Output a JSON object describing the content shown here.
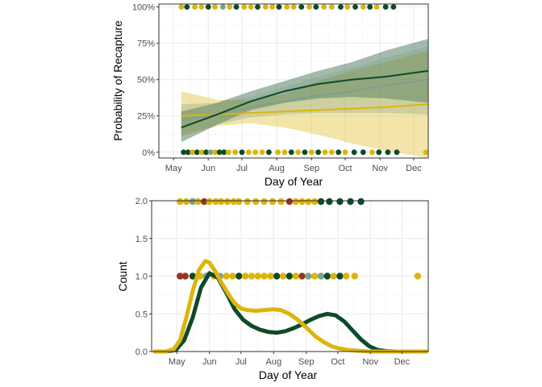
{
  "colors": {
    "dark_green": "#0d4a28",
    "yellow": "#dcb50c",
    "sage": "#7ca18a",
    "red": "#9b3322",
    "panel_border": "#333333",
    "grid": "#ebebeb"
  },
  "chart_data": [
    {
      "type": "line",
      "xlabel": "Day of Year",
      "ylabel": "Probability of Recapture",
      "x_ticks": [
        "May",
        "Jun",
        "Jul",
        "Aug",
        "Sep",
        "Oct",
        "Nov",
        "Dec"
      ],
      "x_tick_days": [
        121,
        152,
        182,
        213,
        244,
        274,
        305,
        335
      ],
      "xlim": [
        108,
        348
      ],
      "y_ticks": [
        "0%",
        "25%",
        "50%",
        "75%",
        "100%"
      ],
      "ylim": [
        -0.04,
        1.02
      ],
      "grid": true,
      "series": [
        {
          "color": "#0d4a28",
          "x": [
            128,
            160,
            190,
            220,
            250,
            280,
            310,
            348
          ],
          "y": [
            0.17,
            0.26,
            0.35,
            0.42,
            0.47,
            0.5,
            0.52,
            0.56
          ],
          "ci_lower": [
            0.07,
            0.19,
            0.29,
            0.34,
            0.37,
            0.38,
            0.37,
            0.34
          ],
          "ci_upper": [
            0.28,
            0.34,
            0.42,
            0.49,
            0.56,
            0.62,
            0.7,
            0.78
          ]
        },
        {
          "color": "#7ca18a",
          "x": [
            128,
            160,
            190,
            220,
            250,
            280,
            310,
            348
          ],
          "y": [
            0.22,
            0.26,
            0.31,
            0.35,
            0.39,
            0.42,
            0.46,
            0.5
          ],
          "ci_lower": [
            0.13,
            0.19,
            0.24,
            0.26,
            0.27,
            0.27,
            0.27,
            0.26
          ],
          "ci_upper": [
            0.33,
            0.34,
            0.38,
            0.45,
            0.52,
            0.58,
            0.65,
            0.73
          ]
        },
        {
          "color": "#dcb50c",
          "x": [
            128,
            160,
            190,
            220,
            250,
            280,
            310,
            348
          ],
          "y": [
            0.25,
            0.26,
            0.27,
            0.28,
            0.29,
            0.3,
            0.31,
            0.33
          ],
          "ci_lower": [
            0.11,
            0.18,
            0.2,
            0.17,
            0.12,
            0.06,
            0.01,
            -0.05
          ],
          "ci_upper": [
            0.42,
            0.36,
            0.36,
            0.4,
            0.49,
            0.56,
            0.62,
            0.7
          ]
        }
      ],
      "observations": {
        "y1": {
          "x": [
            128,
            133,
            140,
            146,
            152,
            158,
            165,
            171,
            177,
            184,
            190,
            196,
            203,
            209,
            215,
            222,
            228,
            235,
            242,
            248,
            255,
            262,
            270,
            276,
            283,
            290,
            296,
            302,
            310,
            317
          ],
          "colors": [
            "#dcb50c",
            "#0d4a28",
            "#dcb50c",
            "#dcb50c",
            "#0d4a28",
            "#dcb50c",
            "#7ca18a",
            "#dcb50c",
            "#0d4a28",
            "#dcb50c",
            "#dcb50c",
            "#0d4a28",
            "#dcb50c",
            "#dcb50c",
            "#0d4a28",
            "#dcb50c",
            "#dcb50c",
            "#0d4a28",
            "#dcb50c",
            "#0d4a28",
            "#dcb50c",
            "#dcb50c",
            "#0d4a28",
            "#dcb50c",
            "#0d4a28",
            "#dcb50c",
            "#0d4a28",
            "#dcb50c",
            "#0d4a28",
            "#0d4a28"
          ]
        },
        "y0": {
          "x": [
            130,
            134,
            138,
            142,
            146,
            150,
            154,
            158,
            162,
            166,
            170,
            176,
            182,
            188,
            194,
            200,
            206,
            214,
            220,
            226,
            232,
            238,
            244,
            250,
            256,
            262,
            268,
            274,
            282,
            290,
            298,
            304,
            312,
            320,
            346
          ],
          "colors": [
            "#0d4a28",
            "#0d4a28",
            "#dcb50c",
            "#0d4a28",
            "#dcb50c",
            "#0d4a28",
            "#7ca18a",
            "#dcb50c",
            "#0d4a28",
            "#0d4a28",
            "#dcb50c",
            "#dcb50c",
            "#0d4a28",
            "#dcb50c",
            "#dcb50c",
            "#dcb50c",
            "#0d4a28",
            "#dcb50c",
            "#dcb50c",
            "#0d4a28",
            "#dcb50c",
            "#0d4a28",
            "#dcb50c",
            "#0d4a28",
            "#dcb50c",
            "#dcb50c",
            "#0d4a28",
            "#dcb50c",
            "#0d4a28",
            "#0d4a28",
            "#dcb50c",
            "#0d4a28",
            "#0d4a28",
            "#0d4a28",
            "#dcb50c"
          ]
        }
      }
    },
    {
      "type": "line",
      "xlabel": "Day of Year",
      "ylabel": "Count",
      "x_ticks": [
        "May",
        "Jun",
        "Jul",
        "Aug",
        "Sep",
        "Oct",
        "Nov",
        "Dec"
      ],
      "x_tick_days": [
        121,
        152,
        182,
        213,
        244,
        274,
        305,
        335
      ],
      "xlim": [
        97,
        360
      ],
      "y_ticks": [
        "0.0",
        "0.5",
        "1.0",
        "1.5",
        "2.0"
      ],
      "y_tick_values": [
        0,
        0.5,
        1.0,
        1.5,
        2.0
      ],
      "ylim": [
        0,
        2.0
      ],
      "grid": true,
      "series": [
        {
          "color": "#0d4a28",
          "x": [
            100,
            110,
            120,
            128,
            136,
            144,
            152,
            160,
            168,
            176,
            184,
            192,
            200,
            208,
            216,
            224,
            232,
            240,
            248,
            256,
            264,
            272,
            280,
            288,
            296,
            304,
            312,
            320,
            330,
            345,
            358
          ],
          "y": [
            0.0,
            0.0,
            0.02,
            0.15,
            0.45,
            0.85,
            1.04,
            0.98,
            0.78,
            0.56,
            0.42,
            0.34,
            0.29,
            0.26,
            0.25,
            0.27,
            0.31,
            0.36,
            0.42,
            0.47,
            0.5,
            0.48,
            0.4,
            0.28,
            0.16,
            0.07,
            0.02,
            0.005,
            0.0,
            0.0,
            0.0
          ]
        },
        {
          "color": "#dcb50c",
          "x": [
            100,
            110,
            118,
            124,
            130,
            136,
            142,
            148,
            152,
            158,
            164,
            170,
            176,
            182,
            188,
            196,
            204,
            212,
            220,
            228,
            236,
            244,
            252,
            260,
            268,
            276,
            284,
            294,
            304,
            316,
            330,
            345,
            358
          ],
          "y": [
            0.0,
            0.0,
            0.03,
            0.15,
            0.45,
            0.8,
            1.08,
            1.2,
            1.18,
            1.05,
            0.9,
            0.76,
            0.64,
            0.57,
            0.55,
            0.54,
            0.55,
            0.56,
            0.55,
            0.5,
            0.42,
            0.32,
            0.21,
            0.13,
            0.07,
            0.04,
            0.02,
            0.01,
            0.0,
            0.0,
            0.0,
            0.0,
            0.0
          ]
        }
      ],
      "points_y1": {
        "x": [
          124,
          129,
          136,
          143,
          149,
          156,
          162,
          168,
          174,
          180,
          186,
          192,
          198,
          204,
          210,
          216,
          222,
          228,
          234,
          240,
          246,
          252,
          258,
          264,
          270,
          276,
          282,
          290,
          350
        ],
        "colors": [
          "#9b3322",
          "#9b3322",
          "#0d4a28",
          "#dcb50c",
          "#7ca18a",
          "#dcb50c",
          "#7ca18a",
          "#dcb50c",
          "#dcb50c",
          "#0d4a28",
          "#dcb50c",
          "#dcb50c",
          "#dcb50c",
          "#dcb50c",
          "#dcb50c",
          "#0d4a28",
          "#dcb50c",
          "#0d4a28",
          "#dcb50c",
          "#9b3322",
          "#7ca18a",
          "#dcb50c",
          "#7ca18a",
          "#0d4a28",
          "#dcb50c",
          "#0d4a28",
          "#dcb50c",
          "#dcb50c",
          "#dcb50c"
        ]
      },
      "points_y2": {
        "x": [
          124,
          130,
          136,
          141,
          147,
          152,
          158,
          163,
          169,
          175,
          180,
          188,
          196,
          204,
          212,
          220,
          228,
          234,
          240,
          246,
          252,
          258,
          266,
          276,
          286,
          296
        ],
        "colors": [
          "#dcb50c",
          "#dcb50c",
          "#7ca18a",
          "#dcb50c",
          "#9b3322",
          "#dcb50c",
          "#dcb50c",
          "#dcb50c",
          "#dcb50c",
          "#dcb50c",
          "#dcb50c",
          "#dcb50c",
          "#dcb50c",
          "#dcb50c",
          "#dcb50c",
          "#dcb50c",
          "#9b3322",
          "#dcb50c",
          "#dcb50c",
          "#dcb50c",
          "#dcb50c",
          "#0d4a28",
          "#0d4a28",
          "#0d4a28",
          "#0d4a28",
          "#0d4a28"
        ]
      }
    }
  ]
}
